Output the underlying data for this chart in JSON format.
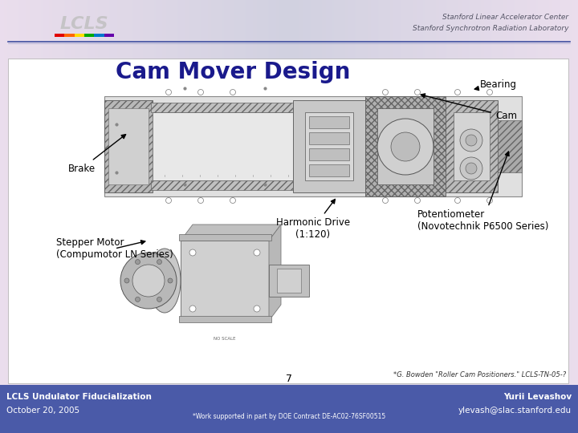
{
  "title": "Cam Mover Design",
  "title_color": "#1a1a8c",
  "title_fontsize": 20,
  "bg_color": "#c8c8d8",
  "content_bg": "#dcdce8",
  "white_panel": "#ffffff",
  "header_text1": "Stanford Linear Accelerator Center",
  "header_text2": "Stanford Synchrotron Radiation Laboratory",
  "header_line_color": "#3f4fa0",
  "logo_text_color": "#b0b0b0",
  "footer_bg_color": "#4a5aa8",
  "footer_left_top": "LCLS Undulator Fiducialization",
  "footer_left_bot": "October 20, 2005",
  "footer_center": "*Work supported in part by DOE Contract DE-AC02-76SF00515",
  "footer_right_top": "Yurii Levashov",
  "footer_right_bot": "ylevash@slac.stanford.edu",
  "page_number": "7",
  "reference": "*G. Bowden \"Roller Cam Positioners.\" LCLS-TN-05-?",
  "rainbow_colors": [
    "#e00000",
    "#ff6600",
    "#ffdd00",
    "#00aa00",
    "#0077cc",
    "#6600aa"
  ],
  "label_fontsize": 8.5
}
